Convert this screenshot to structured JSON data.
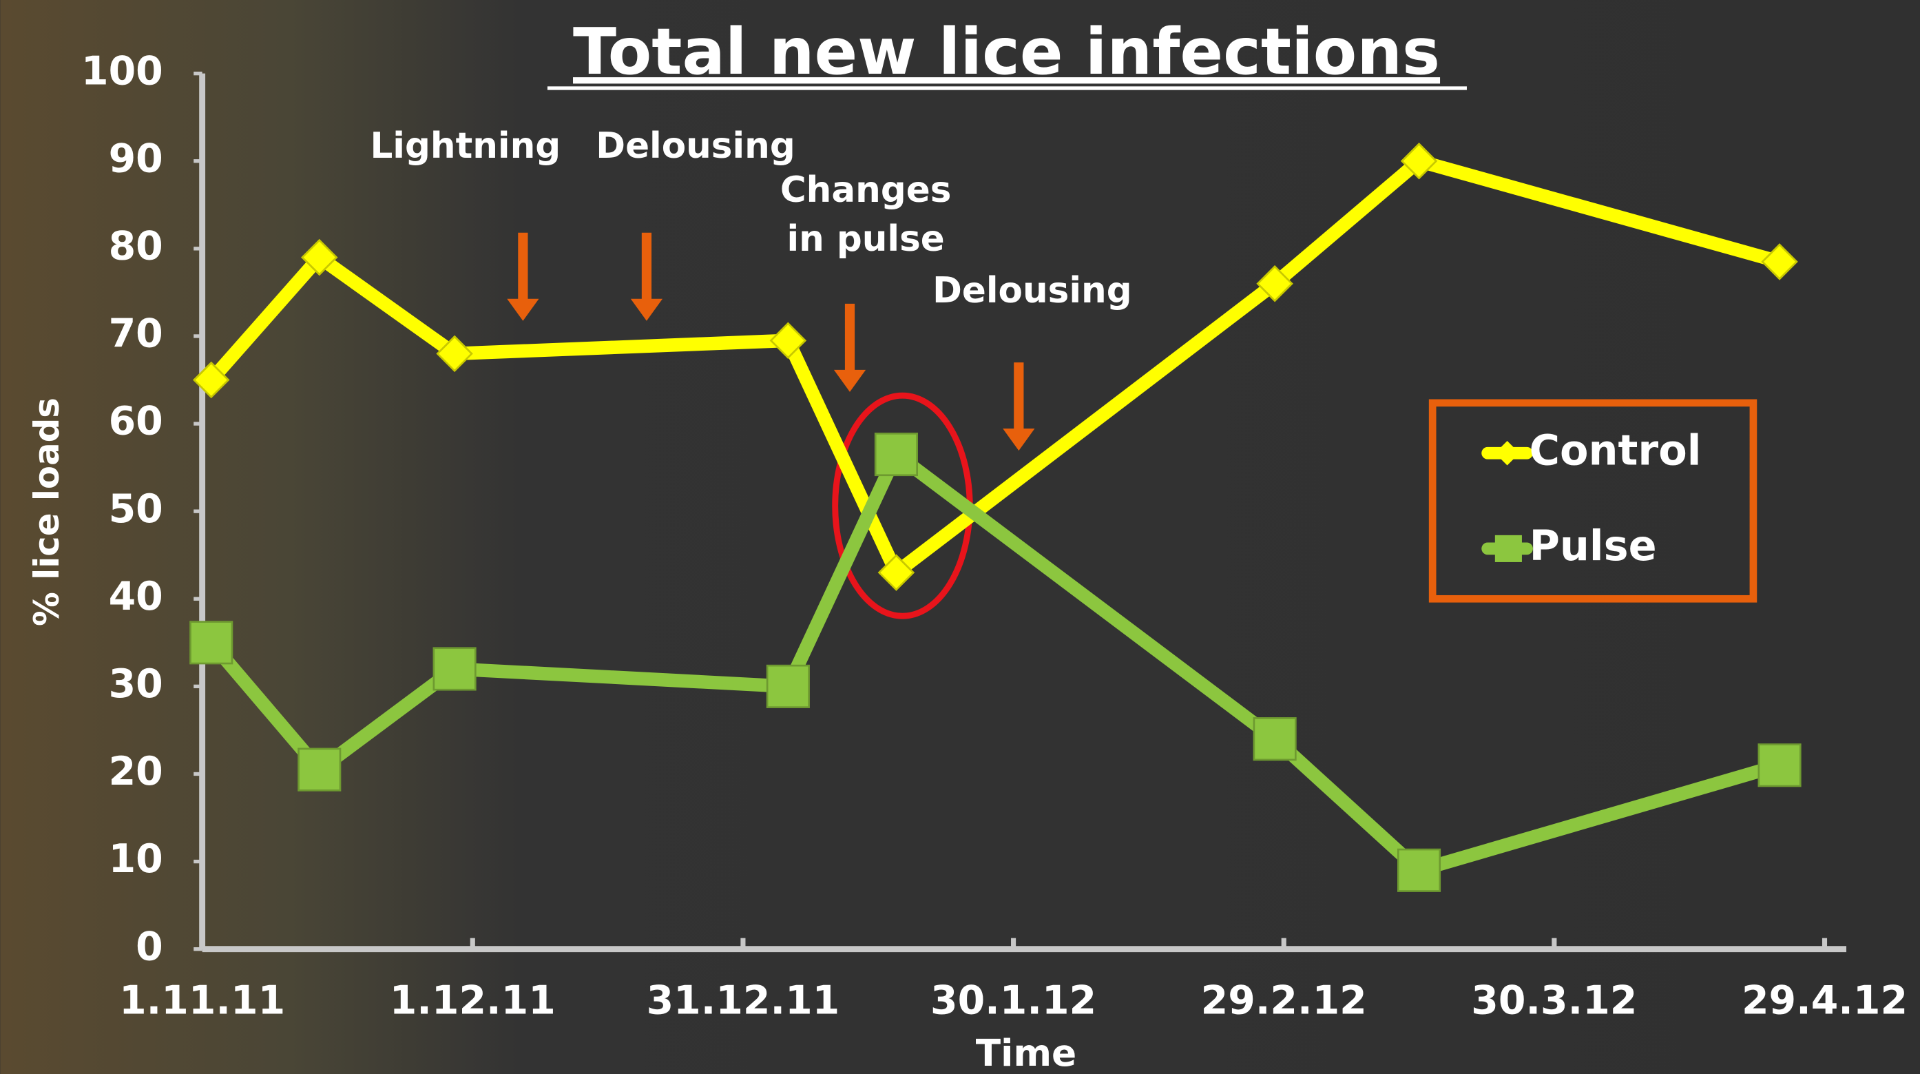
{
  "chart_data": {
    "type": "line",
    "title": "Total new lice infections",
    "x_label": "Time",
    "y_label": "% lice loads",
    "x": [
      "2011-11-02",
      "2011-11-14",
      "2011-11-29",
      "2012-01-05",
      "2012-01-17",
      "2012-02-28",
      "2012-03-15",
      "2012-04-24"
    ],
    "series": [
      {
        "name": "Control",
        "color": "#ffff00",
        "marker": "diamond",
        "values": [
          65,
          79,
          68,
          69.5,
          43,
          76,
          90,
          78.5
        ]
      },
      {
        "name": "Pulse",
        "color": "#8cc63f",
        "marker": "square",
        "values": [
          35,
          20.5,
          32,
          30,
          56.5,
          24,
          9,
          21
        ]
      }
    ],
    "xlim": [
      "2011-11-01",
      "2012-05-01"
    ],
    "xticks": [
      {
        "value": "2011-11-01",
        "label": "1.11.11"
      },
      {
        "value": "2011-12-01",
        "label": "1.12.11"
      },
      {
        "value": "2011-12-31",
        "label": "31.12.11"
      },
      {
        "value": "2012-01-30",
        "label": "30.1.12"
      },
      {
        "value": "2012-02-29",
        "label": "29.2.12"
      },
      {
        "value": "2012-03-30",
        "label": "30.3.12"
      },
      {
        "value": "2012-04-29",
        "label": "29.4.12"
      }
    ],
    "ylim": [
      0,
      100
    ],
    "yticks": [
      0,
      10,
      20,
      30,
      40,
      50,
      60,
      70,
      80,
      90,
      100
    ],
    "legend": "right",
    "annotations": [
      {
        "lines": [
          "Lightning"
        ]
      },
      {
        "lines": [
          "Delousing"
        ]
      },
      {
        "lines": [
          "Changes",
          "in pulse"
        ]
      },
      {
        "lines": [
          "Delousing"
        ]
      }
    ]
  }
}
